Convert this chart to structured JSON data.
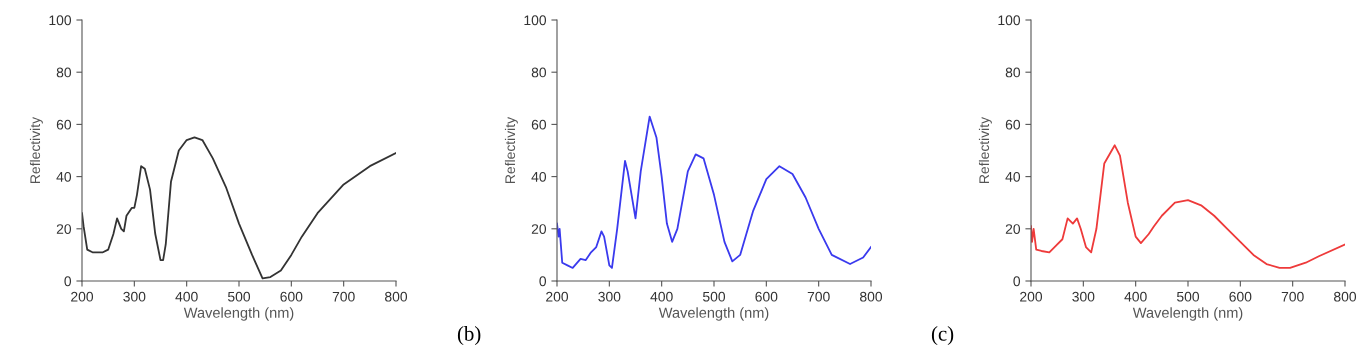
{
  "chart_data": [
    {
      "type": "line",
      "xlabel": "Wavelength (nm)",
      "ylabel": "Reflectivity",
      "xlim": [
        200,
        800
      ],
      "ylim": [
        0,
        100
      ],
      "xticks": [
        200,
        300,
        400,
        500,
        600,
        700,
        800
      ],
      "yticks": [
        0,
        20,
        40,
        60,
        80,
        100
      ],
      "grid": false,
      "legend": false,
      "series": [
        {
          "color": "#333333",
          "x": [
            200,
            203,
            210,
            220,
            240,
            250,
            260,
            267,
            275,
            280,
            285,
            295,
            300,
            305,
            313,
            320,
            330,
            340,
            350,
            355,
            360,
            370,
            385,
            400,
            415,
            430,
            450,
            475,
            500,
            525,
            545,
            560,
            580,
            600,
            620,
            650,
            700,
            750,
            800
          ],
          "values": [
            26,
            21,
            12,
            11,
            11,
            12,
            18,
            24,
            20,
            19,
            25,
            28,
            28,
            33,
            44,
            43,
            35,
            18,
            8,
            8,
            14,
            38,
            50,
            54,
            55,
            54,
            47,
            36,
            22,
            10,
            1,
            1.5,
            4,
            10,
            17,
            26,
            37,
            44,
            49
          ]
        }
      ]
    },
    {
      "type": "line",
      "xlabel": "Wavelength (nm)",
      "ylabel": "Reflectivity",
      "xlim": [
        200,
        800
      ],
      "ylim": [
        0,
        100
      ],
      "xticks": [
        200,
        300,
        400,
        500,
        600,
        700,
        800
      ],
      "yticks": [
        0,
        20,
        40,
        60,
        80,
        100
      ],
      "grid": false,
      "legend": false,
      "annotations": [
        "(b)"
      ],
      "series": [
        {
          "color": "#3a3aee",
          "x": [
            200,
            203,
            205,
            210,
            220,
            230,
            245,
            255,
            265,
            275,
            285,
            290,
            300,
            305,
            315,
            330,
            335,
            350,
            360,
            377,
            390,
            400,
            410,
            420,
            430,
            450,
            465,
            480,
            500,
            520,
            535,
            550,
            575,
            600,
            625,
            650,
            675,
            700,
            725,
            760,
            785,
            800
          ],
          "values": [
            22,
            17,
            20,
            7,
            6,
            5,
            8.5,
            8,
            11,
            13,
            19,
            17,
            6,
            5,
            20,
            46,
            42,
            24,
            42,
            63,
            55,
            40,
            22,
            15,
            20,
            42,
            48.5,
            47,
            33,
            15,
            7.5,
            10,
            27,
            39,
            44,
            41,
            32,
            20,
            10,
            6.5,
            9,
            13
          ]
        }
      ]
    },
    {
      "type": "line",
      "xlabel": "Wavelength (nm)",
      "ylabel": "Reflectivity",
      "xlim": [
        200,
        800
      ],
      "ylim": [
        0,
        100
      ],
      "xticks": [
        200,
        300,
        400,
        500,
        600,
        700,
        800
      ],
      "yticks": [
        0,
        20,
        40,
        60,
        80,
        100
      ],
      "grid": false,
      "legend": false,
      "annotations": [
        "(c)"
      ],
      "series": [
        {
          "color": "#ee3a3a",
          "x": [
            200,
            202,
            205,
            210,
            220,
            235,
            245,
            260,
            270,
            280,
            288,
            295,
            305,
            315,
            325,
            340,
            360,
            370,
            385,
            400,
            410,
            425,
            435,
            450,
            475,
            500,
            525,
            550,
            575,
            600,
            625,
            650,
            675,
            695,
            725,
            750,
            800
          ],
          "values": [
            21,
            15,
            20,
            12,
            11.5,
            11,
            13,
            16,
            24,
            22,
            24,
            20,
            13,
            11,
            20,
            45,
            52,
            48,
            30,
            17,
            14.5,
            18,
            21,
            25,
            30,
            31,
            29,
            25,
            20,
            15,
            10,
            6.5,
            5,
            5,
            7,
            9.5,
            14
          ]
        }
      ]
    }
  ]
}
